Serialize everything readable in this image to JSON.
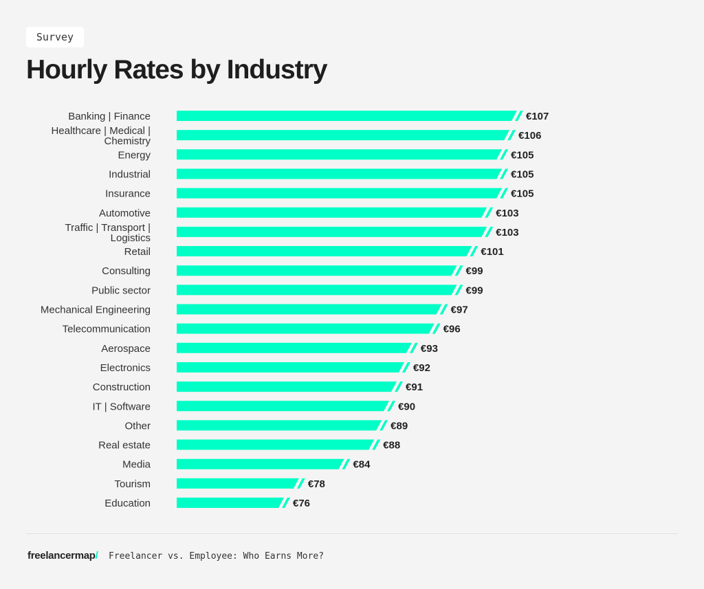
{
  "header": {
    "tag": "Survey",
    "title": "Hourly Rates by Industry"
  },
  "footer": {
    "brand": "freelancermap",
    "brand_slash": "/",
    "subtitle": "Freelancer vs. Employee: Who Earns More?"
  },
  "chart_data": {
    "type": "bar",
    "orientation": "horizontal",
    "title": "Hourly Rates by Industry",
    "xlabel": "",
    "ylabel": "",
    "unit_prefix": "€",
    "bar_color": "#00ffc6",
    "grid": false,
    "categories": [
      [
        "Banking | Finance"
      ],
      [
        "Healthcare | Medical |",
        "Chemistry"
      ],
      [
        "Energy"
      ],
      [
        "Industrial"
      ],
      [
        "Insurance"
      ],
      [
        "Automotive"
      ],
      [
        "Traffic | Transport |",
        "Logistics"
      ],
      [
        "Retail"
      ],
      [
        "Consulting"
      ],
      [
        "Public sector"
      ],
      [
        "Mechanical Engineering"
      ],
      [
        "Telecommunication"
      ],
      [
        "Aerospace"
      ],
      [
        "Electronics"
      ],
      [
        "Construction"
      ],
      [
        "IT | Software"
      ],
      [
        "Other"
      ],
      [
        "Real estate"
      ],
      [
        "Media"
      ],
      [
        "Tourism"
      ],
      [
        "Education"
      ]
    ],
    "values": [
      107,
      106,
      105,
      105,
      105,
      103,
      103,
      101,
      99,
      99,
      97,
      96,
      93,
      92,
      91,
      90,
      89,
      88,
      84,
      78,
      76
    ],
    "labels": [
      "€107",
      "€106",
      "€105",
      "€105",
      "€105",
      "€103",
      "€103",
      "€101",
      "€99",
      "€99",
      "€97",
      "€96",
      "€93",
      "€92",
      "€91",
      "€90",
      "€89",
      "€88",
      "€84",
      "€78",
      "€76"
    ]
  }
}
